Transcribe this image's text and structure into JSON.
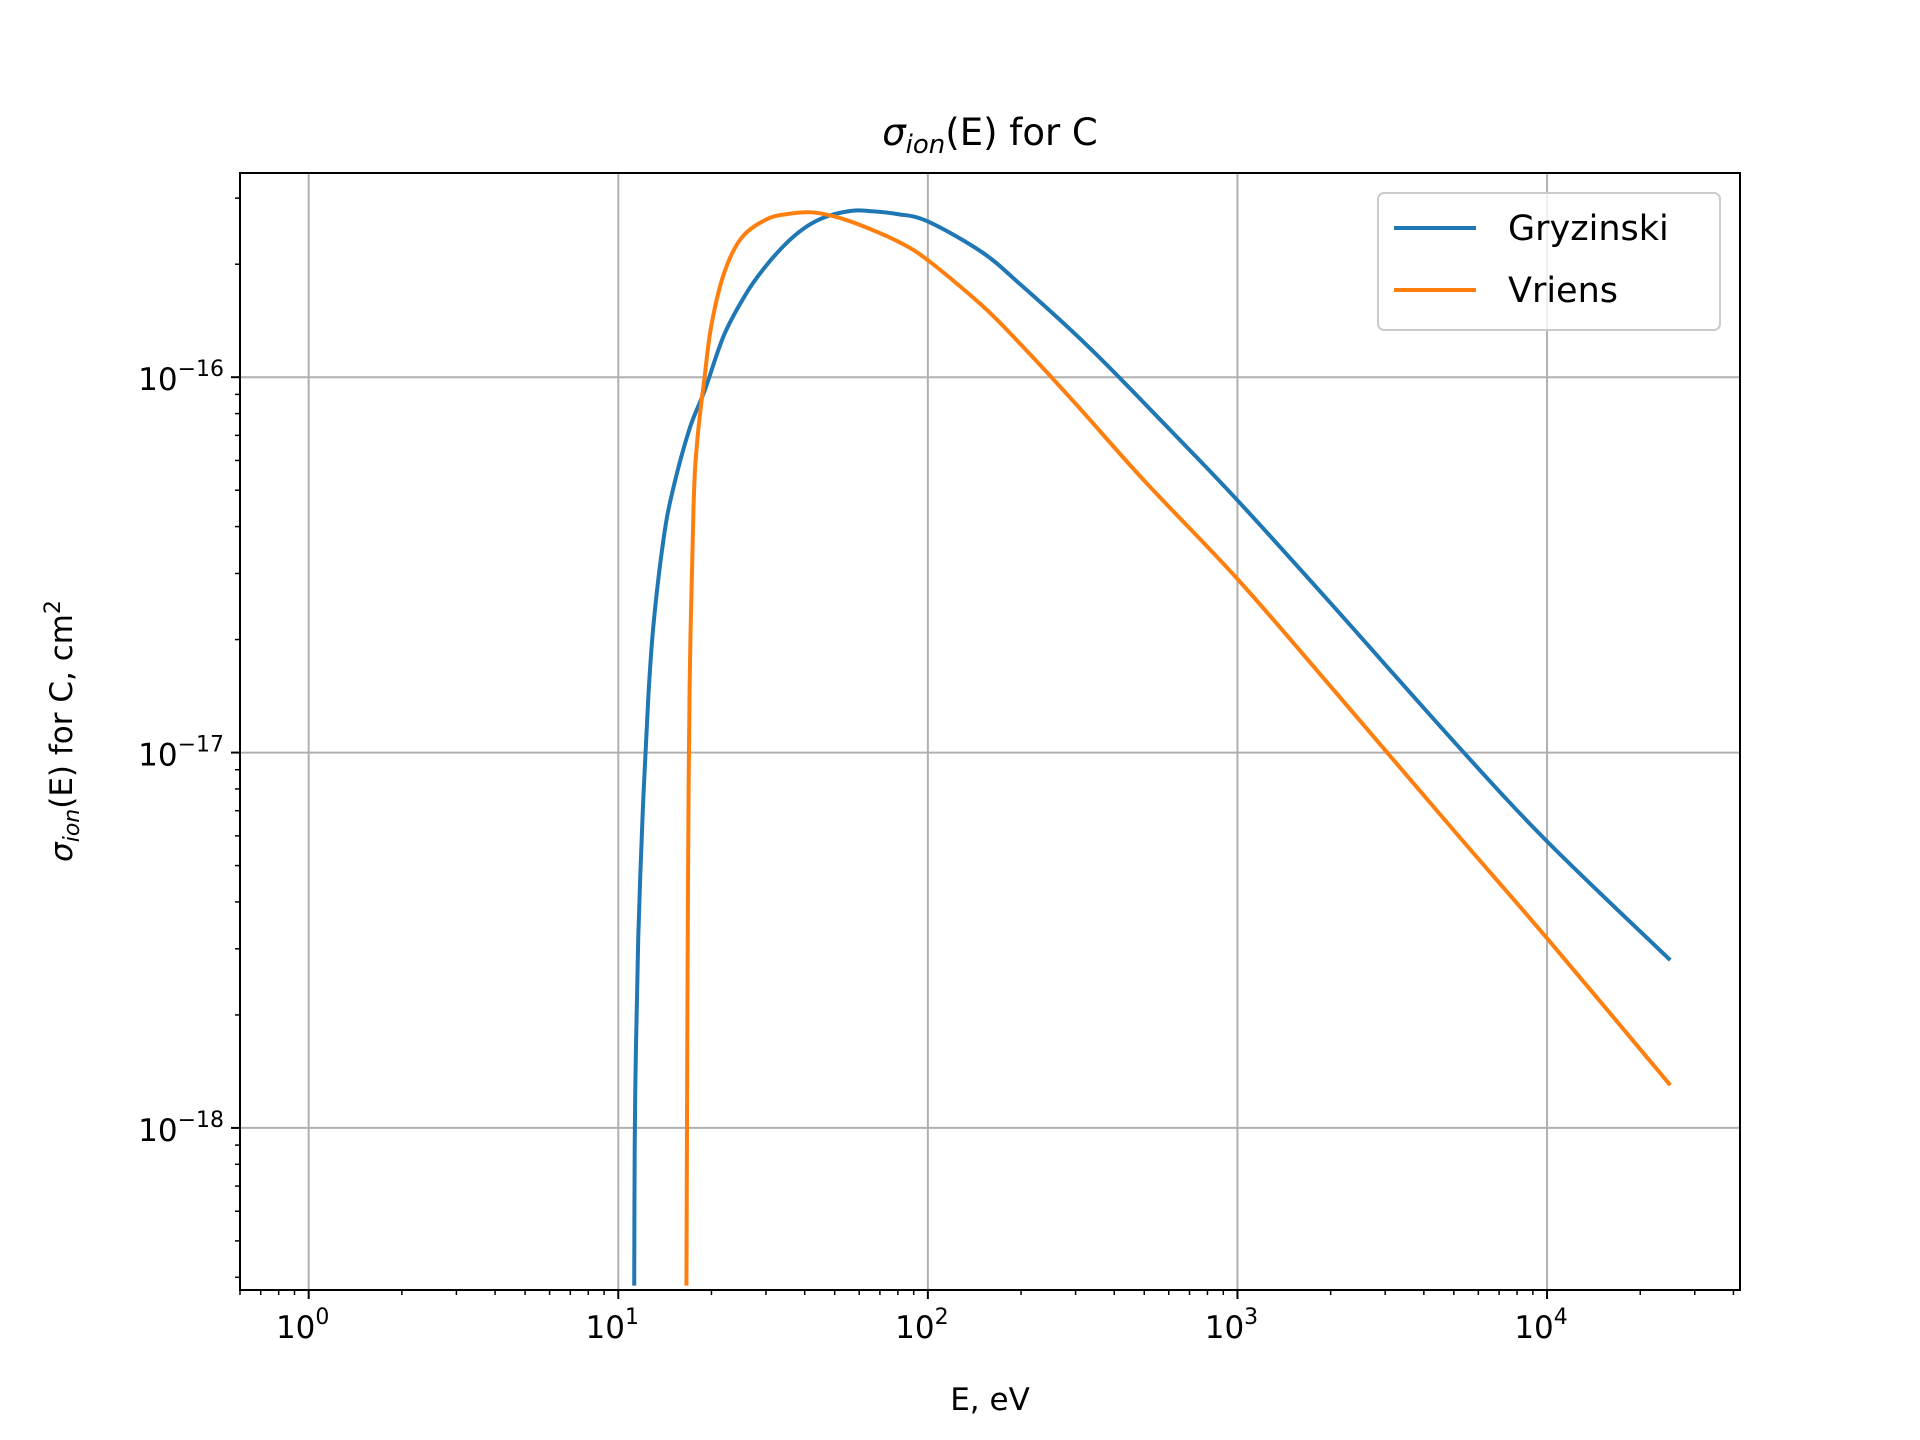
{
  "chart_data": {
    "type": "line",
    "title": {
      "symbol": "σ",
      "sub": "ion",
      "args": "(E)",
      "suffix": " for C"
    },
    "xlabel": "E, eV",
    "ylabel": {
      "symbol": "σ",
      "sub": "ion",
      "args": "(E)",
      "suffix": " for C, cm",
      "sup": "2"
    },
    "x_scale": "log",
    "y_scale": "log",
    "xlim": [
      0.6,
      42000
    ],
    "ylim": [
      3.7e-19,
      3.5e-16
    ],
    "grid": true,
    "legend_position": "top-right",
    "x_ticks": [
      {
        "value": 1,
        "base": "10",
        "exp": "0"
      },
      {
        "value": 10,
        "base": "10",
        "exp": "1"
      },
      {
        "value": 100,
        "base": "10",
        "exp": "2"
      },
      {
        "value": 1000,
        "base": "10",
        "exp": "3"
      },
      {
        "value": 10000,
        "base": "10",
        "exp": "4"
      }
    ],
    "y_ticks": [
      {
        "value": 1e-16,
        "base": "10",
        "exp": "−16"
      },
      {
        "value": 1e-17,
        "base": "10",
        "exp": "−17"
      },
      {
        "value": 1e-18,
        "base": "10",
        "exp": "−18"
      }
    ],
    "series": [
      {
        "name": "Gryzinski",
        "color": "#1f77b4",
        "x": [
          11.26,
          11.3,
          11.4,
          11.6,
          12.0,
          12.5,
          13.0,
          14.0,
          15.0,
          17.0,
          19.0,
          22.0,
          26.0,
          30.0,
          35.0,
          40.0,
          45.0,
          50.0,
          58.0,
          65.0,
          80.0,
          100.0,
          150.0,
          200.0,
          300.0,
          400.0,
          600.0,
          1000.0,
          2000.0,
          5000.0,
          10000.0,
          25000.0
        ],
        "y": [
          3.8e-19,
          9e-19,
          1.6e-18,
          3.2e-18,
          7e-18,
          1.4e-17,
          2.2e-17,
          3.7e-17,
          5e-17,
          7.3e-17,
          9.2e-17,
          1.3e-16,
          1.68e-16,
          1.98e-16,
          2.28e-16,
          2.5e-16,
          2.64e-16,
          2.72e-16,
          2.78e-16,
          2.77e-16,
          2.72e-16,
          2.6e-16,
          2.15e-16,
          1.76e-16,
          1.3e-16,
          1.03e-16,
          7.3e-17,
          4.7e-17,
          2.5e-17,
          1.07e-17,
          5.8e-18,
          2.8e-18
        ]
      },
      {
        "name": "Vriens",
        "color": "#ff7f0e",
        "x": [
          16.6,
          16.7,
          16.8,
          17.0,
          17.5,
          18.0,
          19.0,
          20.0,
          22.0,
          25.0,
          30.0,
          35.0,
          42.0,
          50.0,
          60.0,
          80.0,
          100.0,
          150.0,
          200.0,
          300.0,
          500.0,
          1000.0,
          2000.0,
          5000.0,
          10000.0,
          25000.0
        ],
        "y": [
          3.8e-19,
          1.5e-18,
          4.5e-18,
          1.5e-17,
          4.5e-17,
          6.8e-17,
          1e-16,
          1.38e-16,
          1.9e-16,
          2.35e-16,
          2.63e-16,
          2.72e-16,
          2.75e-16,
          2.68e-16,
          2.55e-16,
          2.3e-16,
          2.05e-16,
          1.55e-16,
          1.22e-16,
          8.5e-17,
          5.3e-17,
          2.9e-17,
          1.5e-17,
          6.2e-18,
          3.2e-18,
          1.3e-18
        ]
      }
    ]
  }
}
